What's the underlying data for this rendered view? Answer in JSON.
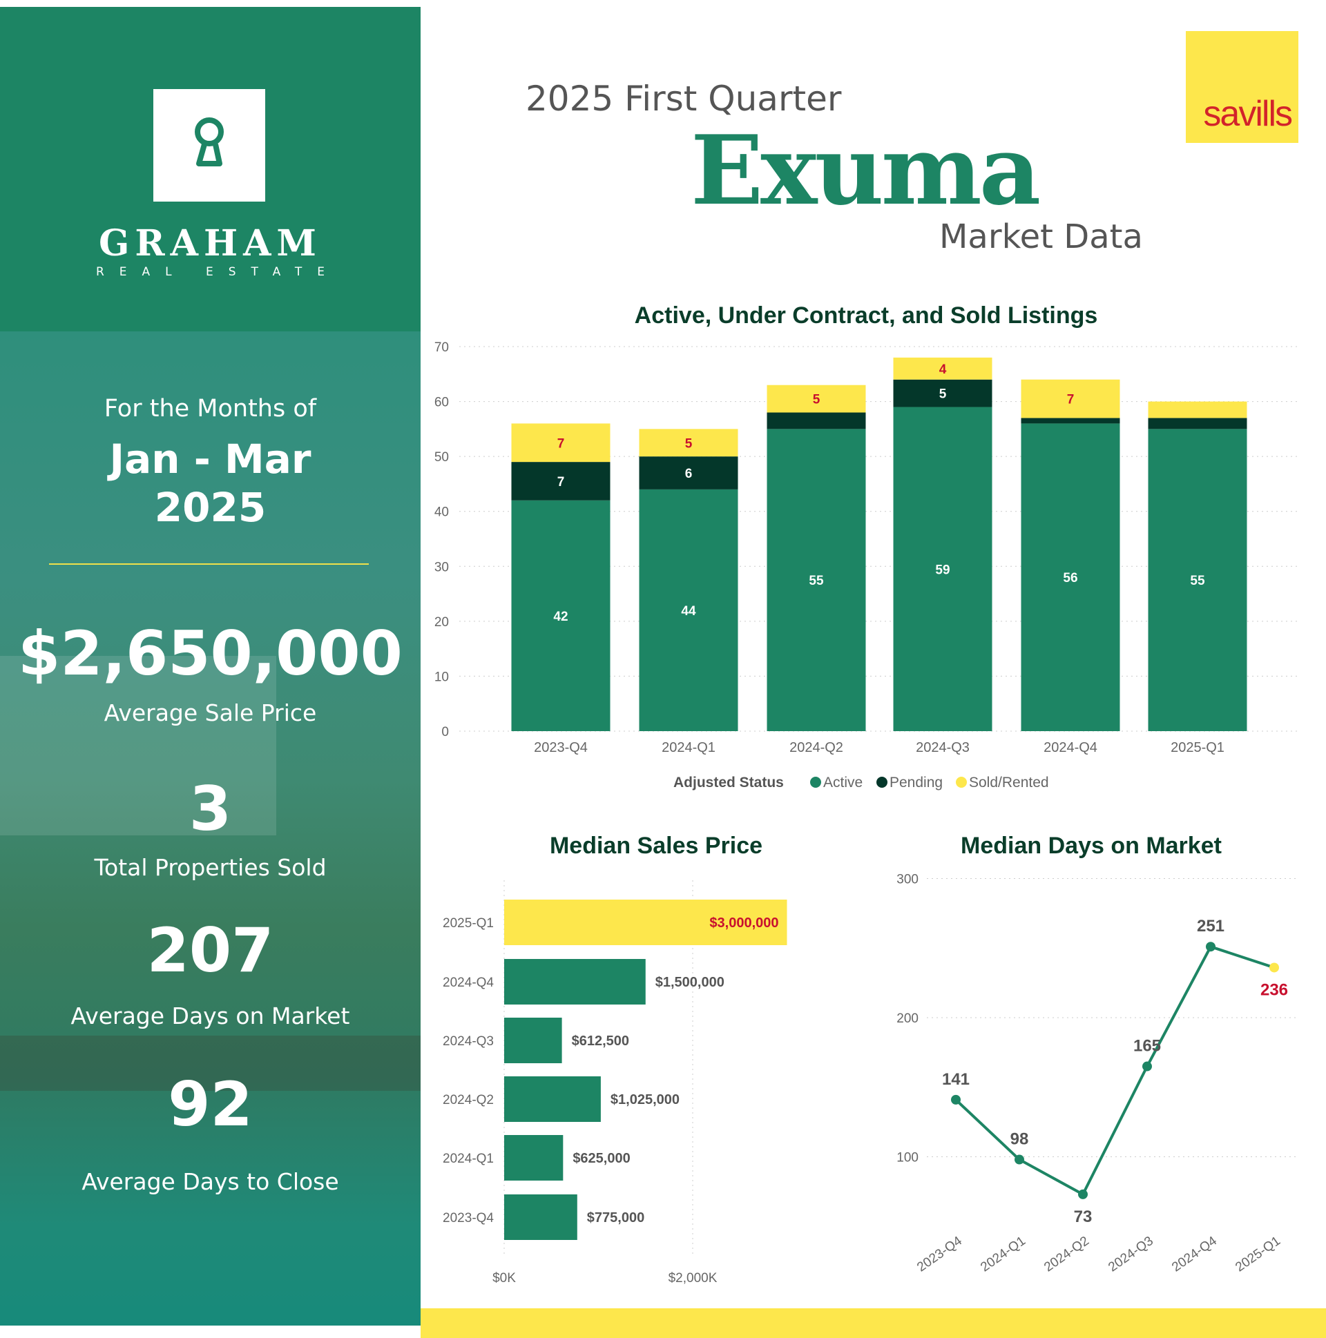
{
  "brand": {
    "name": "GRAHAM",
    "sub": "REAL ESTATE",
    "partner": "savills"
  },
  "header": {
    "line1": "2025 First Quarter",
    "line2": "Exuma",
    "line3": "Market Data"
  },
  "sidebar": {
    "months_label": "For the Months of",
    "months_value": "Jan - Mar",
    "year": "2025",
    "stats": [
      {
        "value": "$2,650,000",
        "label": "Average Sale Price"
      },
      {
        "value": "3",
        "label": "Total Properties Sold"
      },
      {
        "value": "207",
        "label": "Average Days on Market"
      },
      {
        "value": "92",
        "label": "Average Days to Close"
      }
    ]
  },
  "colors": {
    "green": "#1d8564",
    "dark": "#04372a",
    "yellow": "#fde74c",
    "red": "#c8102e"
  },
  "chart_data": [
    {
      "type": "bar",
      "stacked": true,
      "title": "Active, Under Contract, and Sold Listings",
      "categories": [
        "2023-Q4",
        "2024-Q1",
        "2024-Q2",
        "2024-Q3",
        "2024-Q4",
        "2025-Q1"
      ],
      "ylim": [
        0,
        70
      ],
      "yticks": [
        0,
        10,
        20,
        30,
        40,
        50,
        60,
        70
      ],
      "grid": true,
      "legend": {
        "title": "Adjusted Status",
        "placement": "bottom"
      },
      "series": [
        {
          "name": "Active",
          "color": "#1d8564",
          "values": [
            42,
            44,
            55,
            59,
            56,
            55
          ],
          "labels": [
            "42",
            "44",
            "55",
            "59",
            "56",
            "55"
          ]
        },
        {
          "name": "Pending",
          "color": "#04372a",
          "values": [
            7,
            6,
            3,
            5,
            1,
            2
          ],
          "labels": [
            "7",
            "6",
            "",
            "5",
            "",
            ""
          ]
        },
        {
          "name": "Sold/Rented",
          "color": "#fde74c",
          "values": [
            7,
            5,
            5,
            4,
            7,
            3
          ],
          "labels": [
            "7",
            "5",
            "5",
            "4",
            "7",
            ""
          ]
        }
      ]
    },
    {
      "type": "bar",
      "orientation": "horizontal",
      "title": "Median Sales Price",
      "categories": [
        "2025-Q1",
        "2024-Q4",
        "2024-Q3",
        "2024-Q2",
        "2024-Q1",
        "2023-Q4"
      ],
      "values": [
        3000000,
        1500000,
        612500,
        1025000,
        625000,
        775000
      ],
      "labels": [
        "$3,000,000",
        "$1,500,000",
        "$612,500",
        "$1,025,000",
        "$625,000",
        "$775,000"
      ],
      "xticks": [
        "$0K",
        "$2,000K"
      ],
      "xtick_values": [
        0,
        2000000
      ],
      "highlight": "2025-Q1"
    },
    {
      "type": "line",
      "title": "Median Days on Market",
      "categories": [
        "2023-Q4",
        "2024-Q1",
        "2024-Q2",
        "2024-Q3",
        "2024-Q4",
        "2025-Q1"
      ],
      "values": [
        141,
        98,
        73,
        165,
        251,
        236
      ],
      "yticks": [
        100,
        200,
        300
      ],
      "grid": true,
      "highlight": "2025-Q1"
    }
  ]
}
